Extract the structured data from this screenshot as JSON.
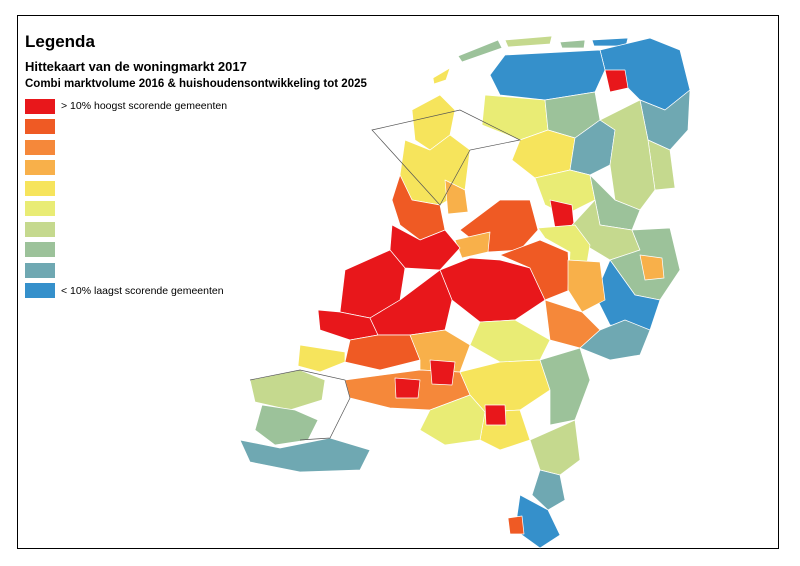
{
  "legend": {
    "title": "Legenda",
    "subtitle": "Hittekaart van de woningmarkt 2017",
    "description": "Combi marktvolume 2016 & huishoudensontwikkeling tot 2025",
    "classes": [
      {
        "color": "#e8171b",
        "label": "> 10% hoogst scorende gemeenten"
      },
      {
        "color": "#ef5a24",
        "label": ""
      },
      {
        "color": "#f5883a",
        "label": ""
      },
      {
        "color": "#f8b04a",
        "label": ""
      },
      {
        "color": "#f6e45c",
        "label": ""
      },
      {
        "color": "#e9ec75",
        "label": ""
      },
      {
        "color": "#c5d98e",
        "label": ""
      },
      {
        "color": "#9cc29a",
        "label": ""
      },
      {
        "color": "#6fa8b2",
        "label": ""
      },
      {
        "color": "#3590cb",
        "label": "< 10% laagst scorende gemeenten"
      }
    ]
  },
  "map": {
    "subject": "Netherlands municipalities",
    "water_color": "#ffffff",
    "border_color": "#ffffff"
  }
}
